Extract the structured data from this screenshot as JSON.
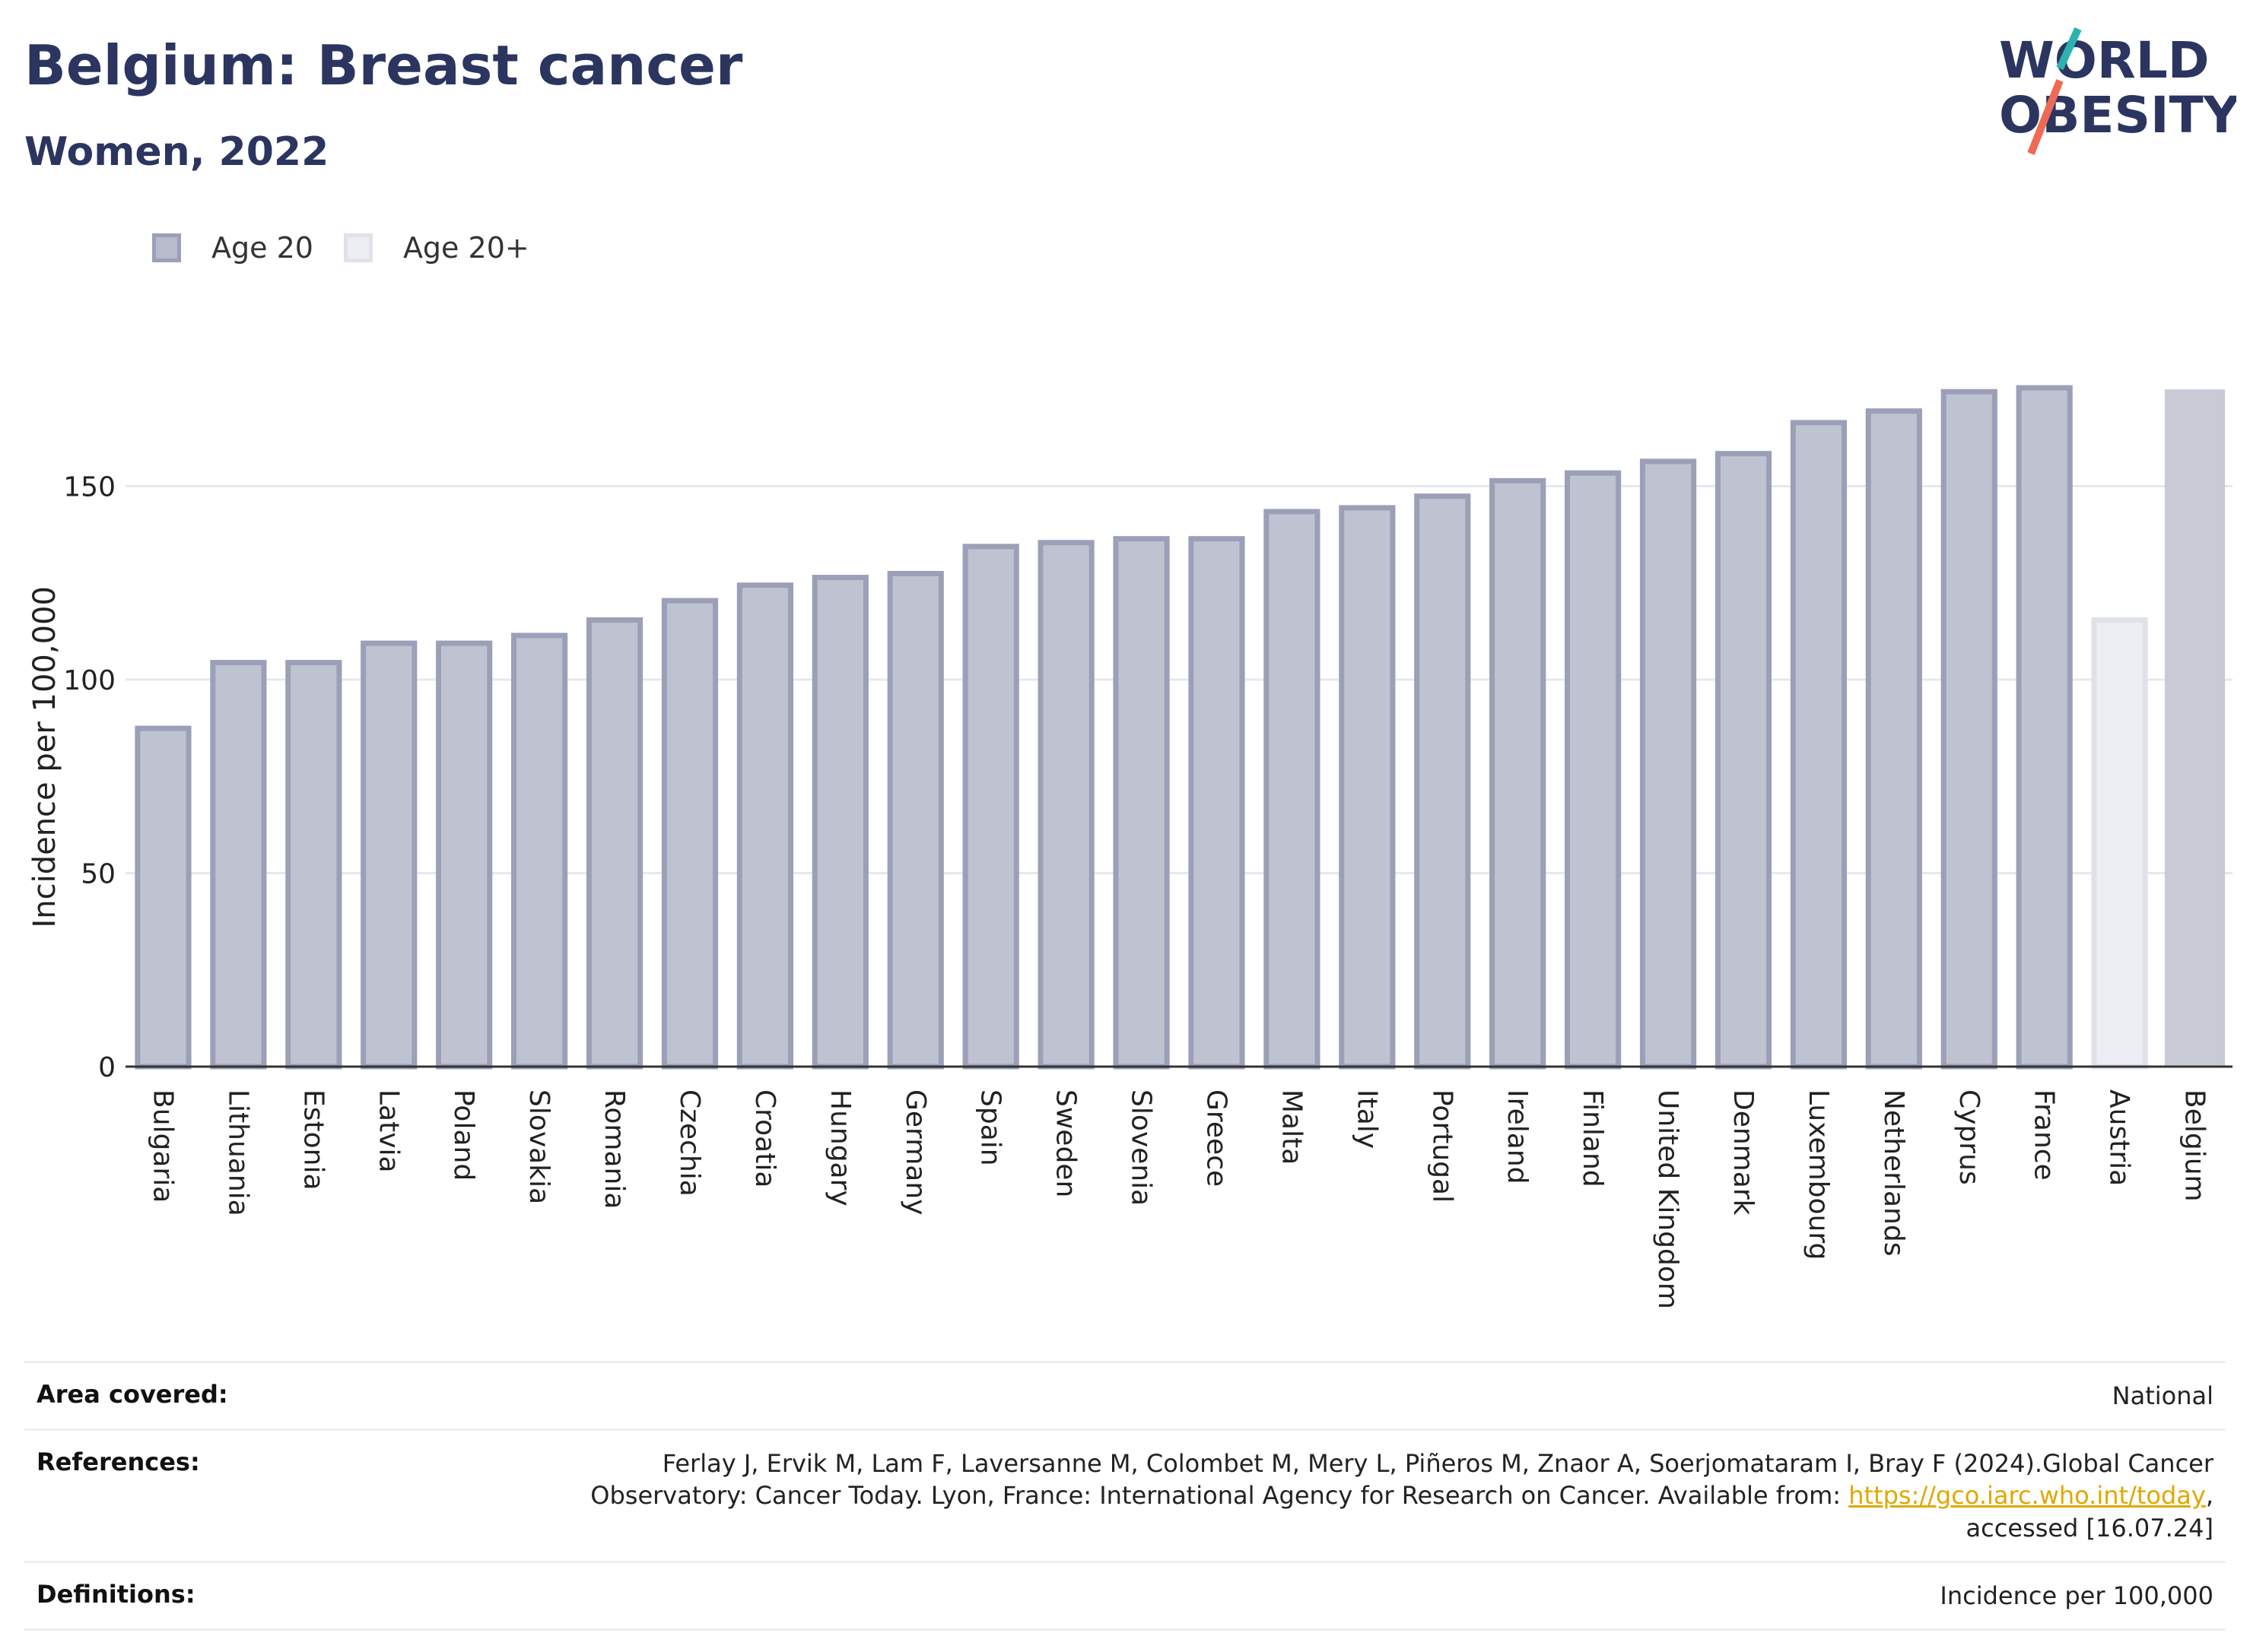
{
  "header": {
    "title": "Belgium: Breast cancer",
    "subtitle": "Women, 2022"
  },
  "logo": {
    "line1": "WORLD",
    "line2": "OBESITY"
  },
  "legend": {
    "items": [
      {
        "label": "Age 20",
        "color": "#9aa0b8",
        "border": "#8a90ac"
      },
      {
        "label": "Age 20+",
        "color": "#e9eaf0",
        "border": "#dcdde6"
      }
    ]
  },
  "chart_data": {
    "type": "bar",
    "ylabel": "Incidence per 100,000",
    "xlabel": "",
    "ylim": [
      0,
      190
    ],
    "yticks": [
      0,
      50,
      100,
      150
    ],
    "grid": true,
    "categories": [
      "Bulgaria",
      "Lithuania",
      "Estonia",
      "Latvia",
      "Poland",
      "Slovakia",
      "Romania",
      "Czechia",
      "Croatia",
      "Hungary",
      "Germany",
      "Spain",
      "Sweden",
      "Slovenia",
      "Greece",
      "Malta",
      "Italy",
      "Portugal",
      "Ireland",
      "Finland",
      "United Kingdom",
      "Denmark",
      "Luxembourg",
      "Netherlands",
      "Cyprus",
      "France",
      "Austria",
      "Belgium"
    ],
    "values": [
      88,
      105,
      105,
      110,
      110,
      112,
      116,
      121,
      125,
      127,
      128,
      135,
      136,
      137,
      137,
      144,
      145,
      148,
      152,
      154,
      157,
      159,
      167,
      170,
      175,
      176,
      116,
      175
    ],
    "series_index": [
      0,
      0,
      0,
      0,
      0,
      0,
      0,
      0,
      0,
      0,
      0,
      0,
      0,
      0,
      0,
      0,
      0,
      0,
      0,
      0,
      0,
      0,
      0,
      0,
      0,
      0,
      1,
      2
    ],
    "colors": {
      "age20_fill": "#bfc2d0",
      "age20_border": "#9ba0b8",
      "age20plus_fill": "#eceef3",
      "age20plus_border": "#e0e2ea",
      "highlight_fill": "#c8cad6"
    }
  },
  "meta": {
    "area_label": "Area covered:",
    "area_value": "National",
    "references_label": "References:",
    "references_text1": "Ferlay J, Ervik M, Lam F, Laversanne M, Colombet M, Mery L, Piñeros M, Znaor A, Soerjomataram I, Bray F (2024).Global Cancer",
    "references_text2": "Observatory: Cancer Today. Lyon, France: International Agency for Research on Cancer. Available from: ",
    "references_link": "https://gco.iarc.who.int/today",
    "references_text3": ",",
    "references_text4": "accessed [16.07.24]",
    "definitions_label": "Definitions:",
    "definitions_value": "Incidence per 100,000"
  }
}
